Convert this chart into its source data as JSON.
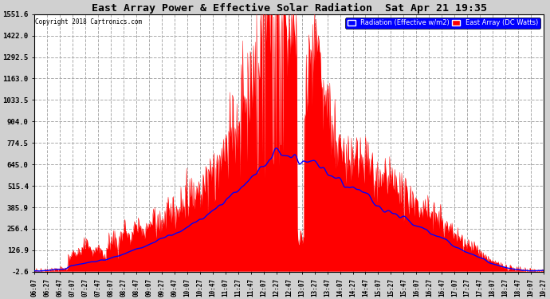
{
  "title": "East Array Power & Effective Solar Radiation  Sat Apr 21 19:35",
  "copyright": "Copyright 2018 Cartronics.com",
  "legend_radiation": "Radiation (Effective w/m2)",
  "legend_array": "East Array (DC Watts)",
  "ymin": -2.6,
  "ymax": 1551.6,
  "yticks": [
    -2.6,
    126.9,
    256.4,
    385.9,
    515.4,
    645.0,
    774.5,
    904.0,
    1033.5,
    1163.0,
    1292.5,
    1422.0,
    1551.6
  ],
  "bg_color": "#d0d0d0",
  "plot_bg_color": "#ffffff",
  "grid_color": "#aaaaaa",
  "title_color": "black",
  "radiation_color": "#0000ff",
  "array_color": "#ff0000",
  "array_fill_color": "#ff0000",
  "xtick_labels": [
    "06:07",
    "06:27",
    "06:47",
    "07:07",
    "07:27",
    "07:47",
    "08:07",
    "08:27",
    "08:47",
    "09:07",
    "09:27",
    "09:47",
    "10:07",
    "10:27",
    "10:47",
    "11:07",
    "11:27",
    "11:47",
    "12:07",
    "12:27",
    "12:47",
    "13:07",
    "13:27",
    "13:47",
    "14:07",
    "14:27",
    "14:47",
    "15:07",
    "15:27",
    "15:47",
    "16:07",
    "16:27",
    "16:47",
    "17:07",
    "17:27",
    "17:47",
    "18:07",
    "18:27",
    "18:47",
    "19:07",
    "19:27"
  ]
}
